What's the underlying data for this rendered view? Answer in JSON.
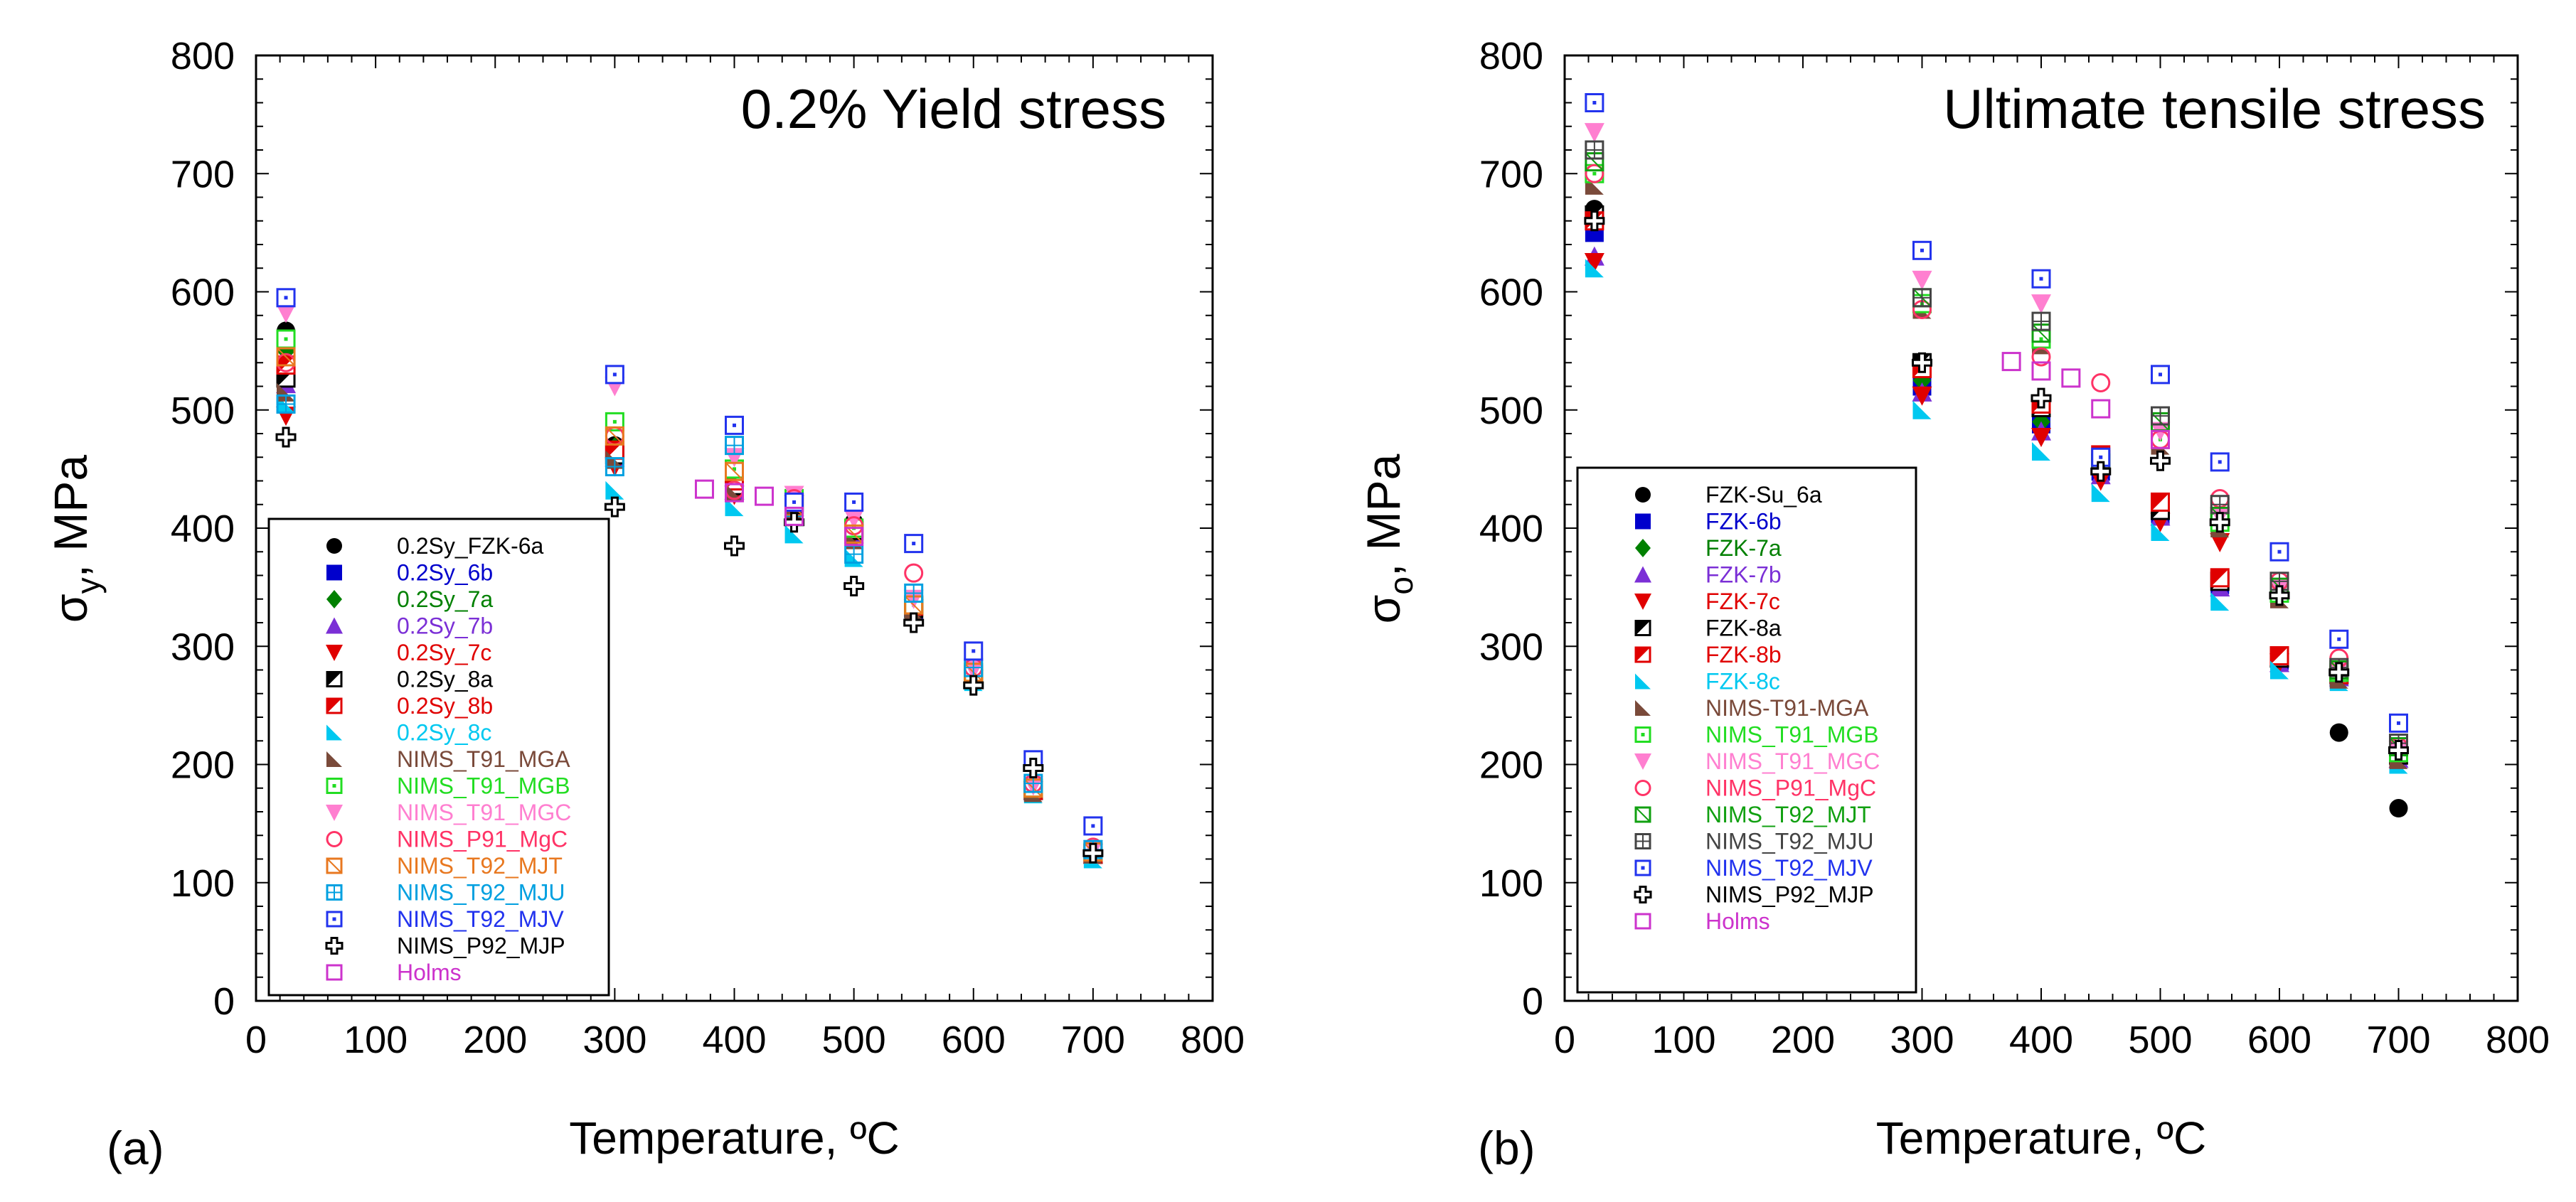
{
  "figure": {
    "panel_a_label": "(a)",
    "panel_b_label": "(b)"
  },
  "chart_data": [
    {
      "type": "scatter",
      "title": "0.2% Yield stress",
      "xlabel": "Temperature, ºC",
      "ylabel_main": "σ",
      "ylabel_sub": "y",
      "ylabel_unit": ", MPa",
      "xlim": [
        0,
        800
      ],
      "ylim": [
        0,
        800
      ],
      "xticks": [
        "0",
        "100",
        "200",
        "300",
        "400",
        "500",
        "600",
        "700",
        "800"
      ],
      "yticks": [
        "0",
        "100",
        "200",
        "300",
        "400",
        "500",
        "600",
        "700",
        "800"
      ],
      "grid": false,
      "legend_position": "bottom-left",
      "series": [
        {
          "name": "0.2Sy_FZK-6a",
          "marker": "circle",
          "color": "#000000",
          "x": [
            25,
            300,
            400,
            450,
            500,
            550,
            600,
            650,
            700
          ],
          "y": [
            567,
            470,
            440,
            428,
            405,
            330,
            275,
            178,
            125
          ]
        },
        {
          "name": "0.2Sy_6b",
          "marker": "square",
          "color": "#0000cc",
          "x": [
            25,
            300,
            400,
            450,
            500,
            550,
            600,
            650,
            700
          ],
          "y": [
            530,
            462,
            432,
            418,
            398,
            328,
            272,
            178,
            124
          ]
        },
        {
          "name": "0.2Sy_7a",
          "marker": "diamond",
          "color": "#008000",
          "x": [
            25,
            300,
            400,
            450,
            500,
            550,
            600,
            650,
            700
          ],
          "y": [
            550,
            468,
            438,
            420,
            400,
            330,
            276,
            178,
            124
          ]
        },
        {
          "name": "0.2Sy_7b",
          "marker": "triangle",
          "color": "#7b2fd6",
          "x": [
            25,
            300,
            400,
            450,
            500,
            550,
            600,
            650,
            700
          ],
          "y": [
            522,
            460,
            432,
            418,
            395,
            328,
            272,
            178,
            124
          ]
        },
        {
          "name": "0.2Sy_7c",
          "marker": "triangle-down",
          "color": "#e00000",
          "x": [
            25,
            300,
            400,
            450,
            500,
            550,
            600,
            650,
            700
          ],
          "y": [
            495,
            452,
            428,
            420,
            395,
            332,
            272,
            178,
            125
          ]
        },
        {
          "name": "0.2Sy_8a",
          "marker": "half-square",
          "color": "#000000",
          "x": [
            25,
            300,
            400,
            450,
            500,
            550,
            600,
            650,
            700
          ],
          "y": [
            527,
            462,
            436,
            420,
            398,
            332,
            274,
            178,
            124
          ]
        },
        {
          "name": "0.2Sy_8b",
          "marker": "half-square",
          "color": "#e00000",
          "x": [
            25,
            300,
            400,
            450,
            500,
            550,
            600,
            650,
            700
          ],
          "y": [
            538,
            466,
            440,
            422,
            400,
            334,
            276,
            178,
            124
          ]
        },
        {
          "name": "0.2Sy_8c",
          "marker": "half-triangle",
          "color": "#00c8f0",
          "x": [
            25,
            300,
            400,
            450,
            500,
            550,
            600,
            650,
            700
          ],
          "y": [
            505,
            432,
            418,
            395,
            375,
            325,
            270,
            175,
            120
          ]
        },
        {
          "name": "NIMS_T91_MGA",
          "marker": "half-triangle",
          "color": "#7a4a3a",
          "x": [
            25,
            300,
            400,
            450,
            500,
            550,
            600,
            650,
            700
          ],
          "y": [
            515,
            458,
            430,
            415,
            390,
            330,
            272,
            176,
            124
          ]
        },
        {
          "name": "NIMS_T91_MGB",
          "marker": "dotted-square",
          "color": "#22dd22",
          "x": [
            25,
            300,
            400,
            450,
            500,
            550,
            600,
            650,
            700
          ],
          "y": [
            560,
            490,
            450,
            425,
            400,
            335,
            278,
            180,
            126
          ]
        },
        {
          "name": "NIMS_T91_MGC",
          "marker": "triangle-down",
          "color": "#ff7fd0",
          "x": [
            25,
            300,
            400,
            450,
            500,
            550,
            600,
            650,
            700
          ],
          "y": [
            582,
            520,
            460,
            428,
            408,
            340,
            280,
            182,
            128
          ]
        },
        {
          "name": "NIMS_P91_MgC",
          "marker": "open-circle",
          "color": "#ff3366",
          "x": [
            25,
            300,
            400,
            450,
            500,
            550,
            600,
            650,
            700
          ],
          "y": [
            540,
            478,
            432,
            425,
            402,
            362,
            282,
            184,
            130
          ]
        },
        {
          "name": "NIMS_T92_MJT",
          "marker": "hatched-square",
          "color": "#e87820",
          "x": [
            25,
            300,
            400,
            450,
            500,
            550,
            600,
            650,
            700
          ],
          "y": [
            545,
            478,
            448,
            418,
            395,
            335,
            278,
            180,
            126
          ]
        },
        {
          "name": "NIMS_T92_MJU",
          "marker": "cross-square",
          "color": "#00a0e0",
          "x": [
            25,
            300,
            400,
            450,
            500,
            550,
            600,
            650,
            700
          ],
          "y": [
            505,
            452,
            470,
            410,
            378,
            345,
            282,
            184,
            128
          ]
        },
        {
          "name": "NIMS_T92_MJV",
          "marker": "dotted-square",
          "color": "#2233ee",
          "x": [
            25,
            300,
            400,
            450,
            500,
            550,
            600,
            650,
            700
          ],
          "y": [
            595,
            530,
            487,
            422,
            422,
            387,
            296,
            204,
            148
          ]
        },
        {
          "name": "NIMS_P92_MJP",
          "marker": "plus",
          "color": "#000000",
          "x": [
            25,
            300,
            400,
            450,
            500,
            550,
            600,
            650,
            700
          ],
          "y": [
            477,
            418,
            385,
            405,
            351,
            320,
            267,
            197,
            125
          ]
        },
        {
          "name": "Holms",
          "marker": "open-square",
          "color": "#cc33cc",
          "x": [
            375,
            400,
            425,
            450,
            500
          ],
          "y": [
            433,
            430,
            427,
            410,
            393
          ]
        }
      ]
    },
    {
      "type": "scatter",
      "title": "Ultimate tensile stress",
      "xlabel": "Temperature, ºC",
      "ylabel_main": "σ",
      "ylabel_sub": "o",
      "ylabel_unit": ", MPa",
      "xlim": [
        0,
        800
      ],
      "ylim": [
        0,
        800
      ],
      "xticks": [
        "0",
        "100",
        "200",
        "300",
        "400",
        "500",
        "600",
        "700",
        "800"
      ],
      "yticks": [
        "0",
        "100",
        "200",
        "300",
        "400",
        "500",
        "600",
        "700",
        "800"
      ],
      "grid": false,
      "legend_position": "bottom-left",
      "series": [
        {
          "name": "FZK-Su_6a",
          "marker": "circle",
          "color": "#000000",
          "x": [
            25,
            300,
            400,
            450,
            500,
            550,
            600,
            650,
            700
          ],
          "y": [
            670,
            530,
            490,
            450,
            412,
            355,
            290,
            227,
            163
          ]
        },
        {
          "name": "FZK-6b",
          "marker": "square",
          "color": "#0000cc",
          "x": [
            25,
            300,
            400,
            450,
            500,
            550,
            600,
            650,
            700
          ],
          "y": [
            650,
            520,
            488,
            448,
            410,
            352,
            288,
            275,
            208
          ]
        },
        {
          "name": "FZK-7a",
          "marker": "diamond",
          "color": "#008000",
          "x": [
            25,
            300,
            400,
            450,
            500,
            550,
            600,
            650,
            700
          ],
          "y": [
            660,
            525,
            490,
            448,
            412,
            352,
            288,
            274,
            206
          ]
        },
        {
          "name": "FZK-7b",
          "marker": "triangle",
          "color": "#7b2fd6",
          "x": [
            25,
            300,
            400,
            450,
            500,
            550,
            600,
            650,
            700
          ],
          "y": [
            630,
            515,
            482,
            445,
            410,
            350,
            286,
            274,
            205
          ]
        },
        {
          "name": "FZK-7c",
          "marker": "triangle-down",
          "color": "#e00000",
          "x": [
            25,
            300,
            400,
            450,
            500,
            550,
            600,
            650,
            700
          ],
          "y": [
            625,
            512,
            477,
            440,
            405,
            388,
            286,
            274,
            205
          ]
        },
        {
          "name": "FZK-8a",
          "marker": "half-square",
          "color": "#000000",
          "x": [
            25,
            300,
            400,
            450,
            500,
            550,
            600,
            650,
            700
          ],
          "y": [
            665,
            540,
            502,
            455,
            415,
            355,
            290,
            276,
            208
          ]
        },
        {
          "name": "FZK-8b",
          "marker": "half-square",
          "color": "#e00000",
          "x": [
            25,
            300,
            400,
            450,
            500,
            550,
            600,
            650,
            700
          ],
          "y": [
            660,
            535,
            505,
            462,
            422,
            358,
            292,
            276,
            210
          ]
        },
        {
          "name": "FZK-8c",
          "marker": "half-triangle",
          "color": "#00c8f0",
          "x": [
            25,
            300,
            400,
            450,
            500,
            550,
            600,
            650,
            700
          ],
          "y": [
            620,
            500,
            465,
            430,
            397,
            338,
            280,
            270,
            200
          ]
        },
        {
          "name": "NIMS-T91-MGA",
          "marker": "half-triangle",
          "color": "#7a4a3a",
          "x": [
            25,
            300,
            400,
            450,
            500,
            550,
            600,
            650,
            700
          ],
          "y": [
            690,
            585,
            555,
            455,
            470,
            400,
            340,
            272,
            204
          ]
        },
        {
          "name": "NIMS_T91_MGB",
          "marker": "dotted-square",
          "color": "#22dd22",
          "x": [
            25,
            300,
            400,
            450,
            500,
            550,
            600,
            650,
            700
          ],
          "y": [
            700,
            590,
            560,
            455,
            475,
            405,
            345,
            278,
            210
          ]
        },
        {
          "name": "NIMS_T91_MGC",
          "marker": "triangle-down",
          "color": "#ff7fd0",
          "x": [
            25,
            300,
            400,
            450,
            500,
            550,
            600,
            650,
            700
          ],
          "y": [
            735,
            610,
            590,
            460,
            482,
            410,
            350,
            280,
            212
          ]
        },
        {
          "name": "NIMS_P91_MgC",
          "marker": "open-circle",
          "color": "#ff3366",
          "x": [
            25,
            300,
            400,
            450,
            500,
            550,
            600,
            650,
            700
          ],
          "y": [
            700,
            585,
            545,
            523,
            475,
            425,
            355,
            290,
            215
          ]
        },
        {
          "name": "NIMS_T92_MJT",
          "marker": "hatched-square",
          "color": "#11a011",
          "x": [
            25,
            300,
            400,
            450,
            500,
            550,
            600,
            650,
            700
          ],
          "y": [
            710,
            595,
            565,
            455,
            490,
            410,
            350,
            280,
            215
          ]
        },
        {
          "name": "NIMS_T92_MJU",
          "marker": "cross-square",
          "color": "#444444",
          "x": [
            25,
            300,
            400,
            450,
            500,
            550,
            600,
            650,
            700
          ],
          "y": [
            720,
            595,
            575,
            458,
            495,
            420,
            355,
            282,
            218
          ]
        },
        {
          "name": "NIMS_T92_MJV",
          "marker": "dotted-square",
          "color": "#2233ee",
          "x": [
            25,
            300,
            400,
            450,
            500,
            550,
            600,
            650,
            700
          ],
          "y": [
            760,
            635,
            611,
            460,
            530,
            456,
            380,
            306,
            235
          ]
        },
        {
          "name": "NIMS_P92_MJP",
          "marker": "plus",
          "color": "#000000",
          "x": [
            25,
            300,
            400,
            450,
            500,
            550,
            600,
            650,
            700
          ],
          "y": [
            660,
            540,
            510,
            448,
            457,
            405,
            343,
            278,
            212
          ]
        },
        {
          "name": "Holms",
          "marker": "open-square",
          "color": "#cc33cc",
          "x": [
            375,
            400,
            425,
            450,
            500
          ],
          "y": [
            541,
            533,
            527,
            501,
            475
          ]
        }
      ]
    }
  ]
}
